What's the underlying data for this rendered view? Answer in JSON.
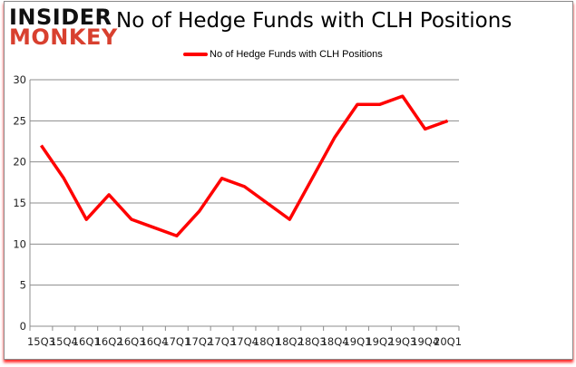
{
  "logo": {
    "line1": "INSIDER",
    "line2": "MONKEY"
  },
  "chart_data": {
    "type": "line",
    "title": "No of Hedge Funds with CLH Positions",
    "xlabel": "",
    "ylabel": "",
    "categories": [
      "15Q3",
      "15Q4",
      "16Q1",
      "16Q2",
      "16Q3",
      "16Q4",
      "17Q1",
      "17Q2",
      "17Q3",
      "17Q4",
      "18Q1",
      "18Q2",
      "18Q3",
      "18Q4",
      "19Q1",
      "19Q2",
      "19Q3",
      "19Q4",
      "20Q1"
    ],
    "series": [
      {
        "name": "No of Hedge Funds with CLH Positions",
        "values": [
          22,
          18,
          13,
          16,
          13,
          12,
          11,
          14,
          18,
          17,
          15,
          13,
          18,
          23,
          27,
          27,
          28,
          24,
          25
        ],
        "color": "#ff0000"
      }
    ],
    "ylim": [
      0,
      30
    ],
    "yticks": [
      0,
      5,
      10,
      15,
      20,
      25,
      30
    ],
    "grid": true,
    "legend": "top-center"
  }
}
